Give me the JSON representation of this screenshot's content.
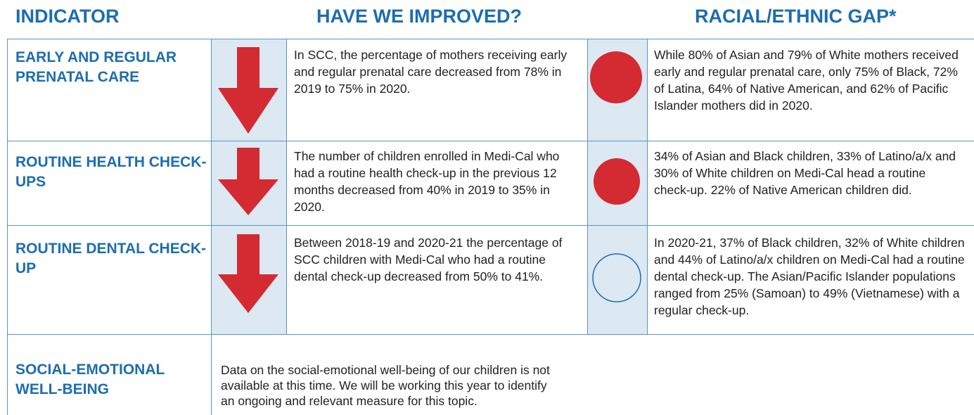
{
  "header": {
    "indicator": "INDICATOR",
    "improved": "HAVE WE IMPROVED?",
    "gap": "RACIAL/ETHNIC GAP*"
  },
  "rows": [
    {
      "indicator": "EARLY AND REGULAR PRENATAL CARE",
      "improvement": "In SCC, the percentage of mothers receiving early and regular prenatal care decreased from 78% in 2019 to 75% in 2020.",
      "gap": "While 80% of Asian and 79% of White mothers received early and regular prenatal care, only 75% of Black, 72% of Latina, 64% of Native American, and 62% of Pacific Islander mothers did in 2020."
    },
    {
      "indicator": "ROUTINE HEALTH CHECK-UPS",
      "improvement": "The number of children enrolled in Medi-Cal who had a routine health check-up in the previous 12 months decreased from 40% in 2019 to 35% in 2020.",
      "gap": "34% of Asian and Black children, 33% of Latino/a/x and 30% of White children on Medi-Cal head a routine check-up. 22% of Native American children did."
    },
    {
      "indicator": "ROUTINE DENTAL CHECK-UP",
      "improvement": "Between 2018-19 and 2020-21 the percentage of SCC children with Medi-Cal who had a routine dental check-up decreased from 50% to 41%.",
      "gap": "In 2020-21, 37% of Black children, 32% of White children and 44% of Latino/a/x children on Medi-Cal had a routine dental check-up. The Asian/Pacific Islander populations ranged from 25% (Samoan) to 49% (Vietnamese) with a regular check-up."
    },
    {
      "indicator": "SOCIAL-EMOTIONAL WELL-BEING",
      "note": "Data on the social-emotional well-being of our children is not available at this time. We will be working this year to identify an ongoing and relevant measure for this topic."
    }
  ]
}
